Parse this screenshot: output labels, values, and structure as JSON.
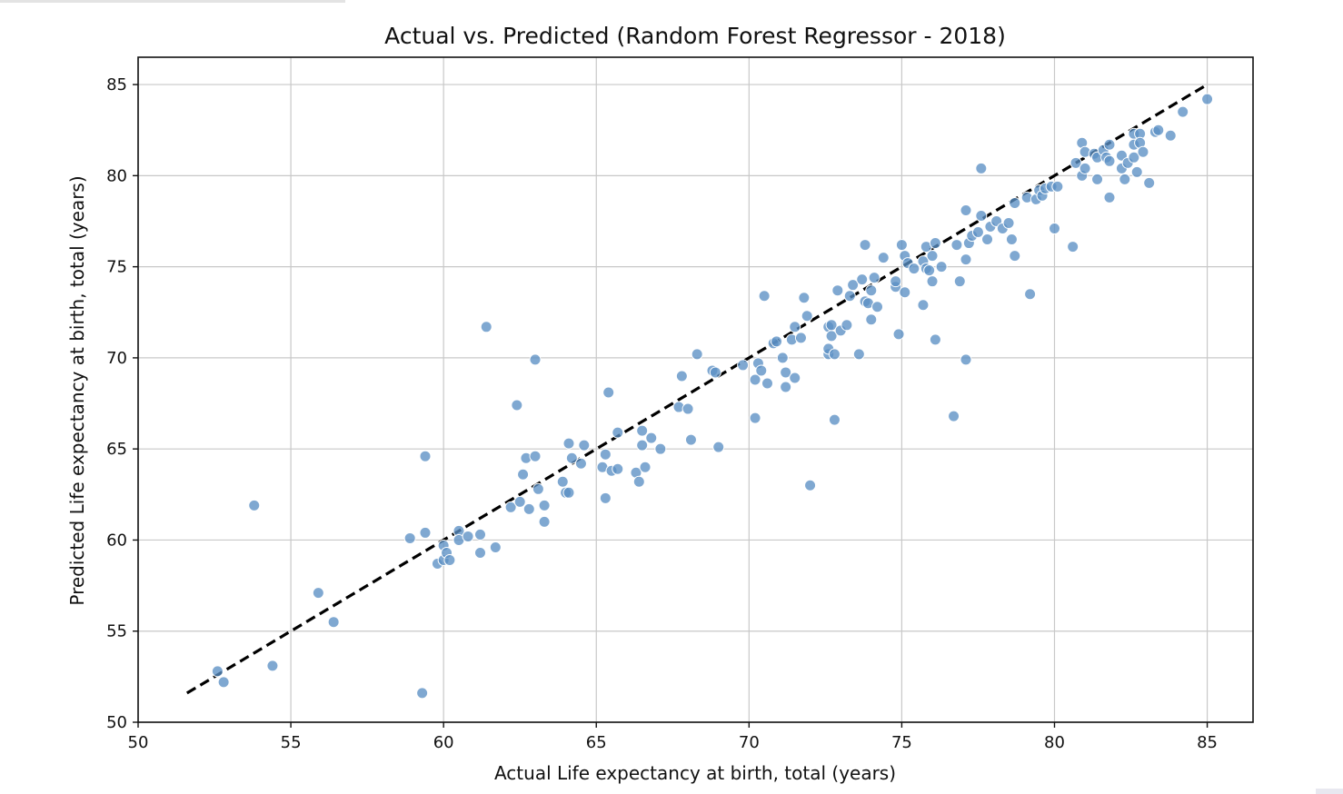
{
  "chart_data": {
    "type": "scatter",
    "title": "Actual vs. Predicted (Random Forest Regressor - 2018)",
    "xlabel": "Actual Life expectancy at birth, total (years)",
    "ylabel": "Predicted Life expectancy at birth, total (years)",
    "xlim": [
      50,
      86.5
    ],
    "ylim": [
      50,
      86.5
    ],
    "xticks": [
      50,
      55,
      60,
      65,
      70,
      75,
      80,
      85
    ],
    "yticks": [
      50,
      55,
      60,
      65,
      70,
      75,
      80,
      85
    ],
    "grid": true,
    "point_color": "#5b8fc4",
    "reference_line": {
      "style": "dashed",
      "color": "#000000",
      "x": [
        51.6,
        85
      ],
      "y": [
        51.6,
        85
      ]
    },
    "series": [
      {
        "points": [
          [
            52.6,
            52.8
          ],
          [
            52.8,
            52.2
          ],
          [
            53.8,
            61.9
          ],
          [
            54.4,
            53.1
          ],
          [
            55.9,
            57.1
          ],
          [
            56.4,
            55.5
          ],
          [
            58.9,
            60.1
          ],
          [
            59.3,
            51.6
          ],
          [
            59.4,
            60.4
          ],
          [
            59.4,
            64.6
          ],
          [
            59.8,
            58.7
          ],
          [
            60.0,
            58.9
          ],
          [
            60.0,
            59.7
          ],
          [
            60.1,
            59.3
          ],
          [
            60.2,
            58.9
          ],
          [
            60.5,
            60.5
          ],
          [
            60.5,
            60.0
          ],
          [
            60.8,
            60.2
          ],
          [
            61.2,
            60.3
          ],
          [
            61.2,
            59.3
          ],
          [
            61.4,
            71.7
          ],
          [
            61.7,
            59.6
          ],
          [
            62.2,
            61.8
          ],
          [
            62.4,
            67.4
          ],
          [
            62.5,
            62.1
          ],
          [
            62.6,
            63.6
          ],
          [
            62.7,
            64.5
          ],
          [
            62.8,
            61.7
          ],
          [
            63.0,
            64.6
          ],
          [
            63.0,
            69.9
          ],
          [
            63.1,
            62.8
          ],
          [
            63.3,
            61.9
          ],
          [
            63.3,
            61.0
          ],
          [
            63.9,
            63.2
          ],
          [
            64.0,
            62.6
          ],
          [
            64.1,
            62.6
          ],
          [
            64.1,
            65.3
          ],
          [
            64.2,
            64.5
          ],
          [
            64.5,
            64.2
          ],
          [
            64.6,
            65.2
          ],
          [
            65.2,
            64.0
          ],
          [
            65.3,
            62.3
          ],
          [
            65.3,
            64.7
          ],
          [
            65.4,
            68.1
          ],
          [
            65.5,
            63.8
          ],
          [
            65.7,
            63.9
          ],
          [
            65.7,
            65.9
          ],
          [
            66.3,
            63.7
          ],
          [
            66.4,
            63.2
          ],
          [
            66.5,
            65.2
          ],
          [
            66.5,
            66.0
          ],
          [
            66.6,
            64.0
          ],
          [
            66.8,
            65.6
          ],
          [
            67.1,
            65.0
          ],
          [
            67.7,
            67.3
          ],
          [
            67.8,
            69.0
          ],
          [
            68.0,
            67.2
          ],
          [
            68.1,
            65.5
          ],
          [
            68.3,
            70.2
          ],
          [
            68.8,
            69.3
          ],
          [
            68.9,
            69.2
          ],
          [
            69.0,
            65.1
          ],
          [
            69.8,
            69.6
          ],
          [
            70.2,
            66.7
          ],
          [
            70.2,
            68.8
          ],
          [
            70.3,
            69.7
          ],
          [
            70.4,
            69.3
          ],
          [
            70.5,
            73.4
          ],
          [
            70.6,
            68.6
          ],
          [
            70.8,
            70.8
          ],
          [
            70.9,
            70.9
          ],
          [
            71.1,
            70.0
          ],
          [
            71.2,
            68.4
          ],
          [
            71.2,
            69.2
          ],
          [
            71.4,
            71.0
          ],
          [
            71.5,
            68.9
          ],
          [
            71.5,
            71.7
          ],
          [
            71.7,
            71.1
          ],
          [
            71.8,
            73.3
          ],
          [
            71.9,
            72.3
          ],
          [
            72.0,
            63.0
          ],
          [
            72.6,
            70.2
          ],
          [
            72.6,
            70.5
          ],
          [
            72.6,
            71.7
          ],
          [
            72.7,
            71.2
          ],
          [
            72.7,
            71.8
          ],
          [
            72.8,
            70.2
          ],
          [
            72.8,
            66.6
          ],
          [
            72.9,
            73.7
          ],
          [
            73.0,
            71.5
          ],
          [
            73.2,
            71.8
          ],
          [
            73.3,
            73.4
          ],
          [
            73.4,
            74.0
          ],
          [
            73.6,
            70.2
          ],
          [
            73.7,
            74.3
          ],
          [
            73.8,
            73.1
          ],
          [
            73.8,
            76.2
          ],
          [
            73.9,
            73.0
          ],
          [
            74.0,
            72.1
          ],
          [
            74.0,
            73.7
          ],
          [
            74.1,
            74.4
          ],
          [
            74.2,
            72.8
          ],
          [
            74.4,
            75.5
          ],
          [
            74.8,
            73.9
          ],
          [
            74.8,
            74.2
          ],
          [
            74.9,
            71.3
          ],
          [
            75.0,
            76.2
          ],
          [
            75.1,
            73.6
          ],
          [
            75.1,
            75.6
          ],
          [
            75.2,
            75.2
          ],
          [
            75.4,
            74.9
          ],
          [
            75.7,
            72.9
          ],
          [
            75.7,
            75.3
          ],
          [
            75.8,
            74.9
          ],
          [
            75.8,
            76.1
          ],
          [
            75.9,
            74.8
          ],
          [
            76.0,
            74.2
          ],
          [
            76.0,
            75.6
          ],
          [
            76.1,
            76.3
          ],
          [
            76.1,
            71.0
          ],
          [
            76.3,
            75.0
          ],
          [
            76.7,
            66.8
          ],
          [
            76.8,
            76.2
          ],
          [
            76.9,
            74.2
          ],
          [
            77.1,
            78.1
          ],
          [
            77.1,
            75.4
          ],
          [
            77.1,
            69.9
          ],
          [
            77.2,
            76.3
          ],
          [
            77.3,
            76.7
          ],
          [
            77.5,
            76.9
          ],
          [
            77.6,
            77.8
          ],
          [
            77.6,
            80.4
          ],
          [
            77.8,
            76.5
          ],
          [
            77.9,
            77.2
          ],
          [
            78.1,
            77.5
          ],
          [
            78.3,
            77.1
          ],
          [
            78.5,
            77.4
          ],
          [
            78.6,
            76.5
          ],
          [
            78.7,
            75.6
          ],
          [
            78.7,
            78.5
          ],
          [
            79.1,
            78.8
          ],
          [
            79.2,
            73.5
          ],
          [
            79.4,
            78.7
          ],
          [
            79.5,
            79.2
          ],
          [
            79.6,
            78.9
          ],
          [
            79.7,
            79.3
          ],
          [
            79.9,
            79.4
          ],
          [
            80.0,
            77.1
          ],
          [
            80.1,
            79.4
          ],
          [
            80.6,
            76.1
          ],
          [
            80.7,
            80.7
          ],
          [
            80.9,
            81.8
          ],
          [
            80.9,
            80.0
          ],
          [
            81.0,
            81.3
          ],
          [
            81.0,
            80.4
          ],
          [
            81.3,
            81.2
          ],
          [
            81.4,
            79.8
          ],
          [
            81.4,
            81.0
          ],
          [
            81.6,
            81.4
          ],
          [
            81.7,
            81.0
          ],
          [
            81.8,
            80.8
          ],
          [
            81.8,
            78.8
          ],
          [
            81.8,
            81.7
          ],
          [
            82.2,
            81.1
          ],
          [
            82.2,
            80.4
          ],
          [
            82.3,
            79.8
          ],
          [
            82.4,
            80.7
          ],
          [
            82.6,
            82.3
          ],
          [
            82.6,
            81.7
          ],
          [
            82.6,
            81.0
          ],
          [
            82.7,
            80.2
          ],
          [
            82.8,
            82.3
          ],
          [
            82.8,
            81.8
          ],
          [
            82.9,
            81.3
          ],
          [
            83.1,
            79.6
          ],
          [
            83.3,
            82.4
          ],
          [
            83.4,
            82.5
          ],
          [
            83.8,
            82.2
          ],
          [
            84.2,
            83.5
          ],
          [
            85.0,
            84.2
          ]
        ]
      }
    ]
  }
}
